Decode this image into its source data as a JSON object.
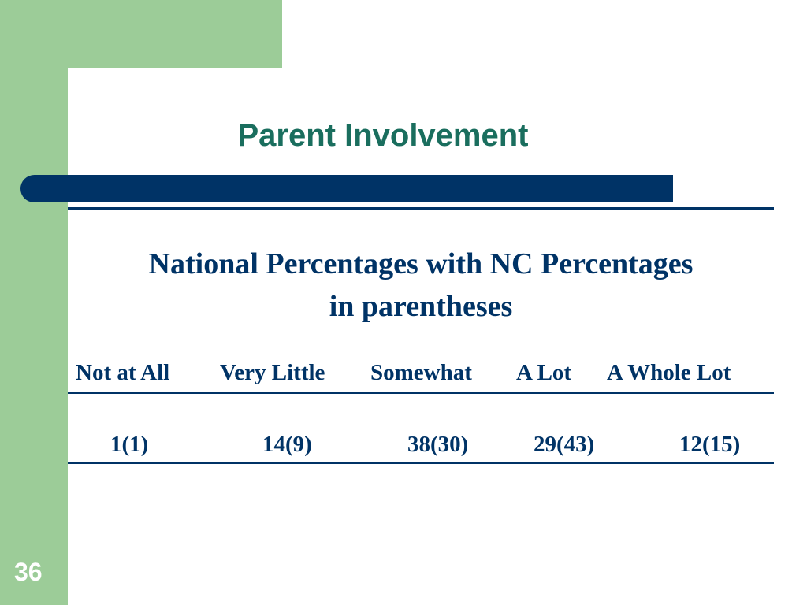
{
  "slide": {
    "title": "Parent Involvement",
    "subtitle_line1": "National Percentages with NC Percentages",
    "subtitle_line2": "in parentheses",
    "slide_number": "36"
  },
  "table": {
    "headers": [
      "Not at All",
      "Very Little",
      "Somewhat",
      "A Lot",
      "A Whole Lot"
    ],
    "values": [
      "1(1)",
      "14(9)",
      "38(30)",
      "29(43)",
      "12(15)"
    ]
  },
  "colors": {
    "green": "#9ccc98",
    "navy": "#003366",
    "teal_title": "#1a6e5e"
  }
}
